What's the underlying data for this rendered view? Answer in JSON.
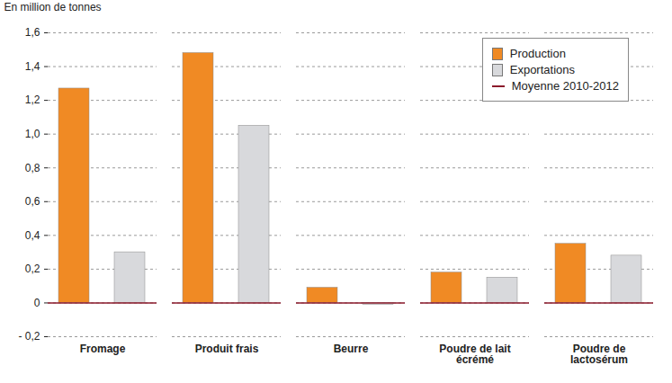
{
  "chart_data": {
    "type": "bar",
    "y_label": "En million de tonnes",
    "categories": [
      "Fromage",
      "Produit frais",
      "Beurre",
      "Poudre de lait écrémé",
      "Poudre de lactosérum"
    ],
    "series": [
      {
        "name": "Production",
        "type": "bar",
        "color": "#f08a24",
        "values": [
          1.27,
          1.48,
          0.09,
          0.18,
          0.35
        ]
      },
      {
        "name": "Exportations",
        "type": "bar",
        "color": "#d8d9dc",
        "values": [
          0.3,
          1.05,
          -0.01,
          0.15,
          0.28
        ]
      },
      {
        "name": "Moyenne 2010-2012",
        "type": "line",
        "color": "#8b1a2b",
        "values": [
          null,
          null,
          null,
          null,
          null
        ]
      }
    ],
    "ylim": [
      -0.2,
      1.6
    ],
    "yticks": [
      {
        "value": -0.2,
        "label": "- 0,2"
      },
      0,
      {
        "value": 0.2,
        "label": "0,2"
      },
      {
        "value": 0.4,
        "label": "0,4"
      },
      {
        "value": 0.6,
        "label": "0,6"
      },
      {
        "value": 0.8,
        "label": "0,8"
      },
      {
        "value": 1.0,
        "label": "1,0"
      },
      {
        "value": 1.2,
        "label": "1,2"
      },
      {
        "value": 1.4,
        "label": "1,4"
      },
      {
        "value": 1.6,
        "label": "1,6"
      }
    ],
    "grid": true,
    "legend": "top-right"
  }
}
